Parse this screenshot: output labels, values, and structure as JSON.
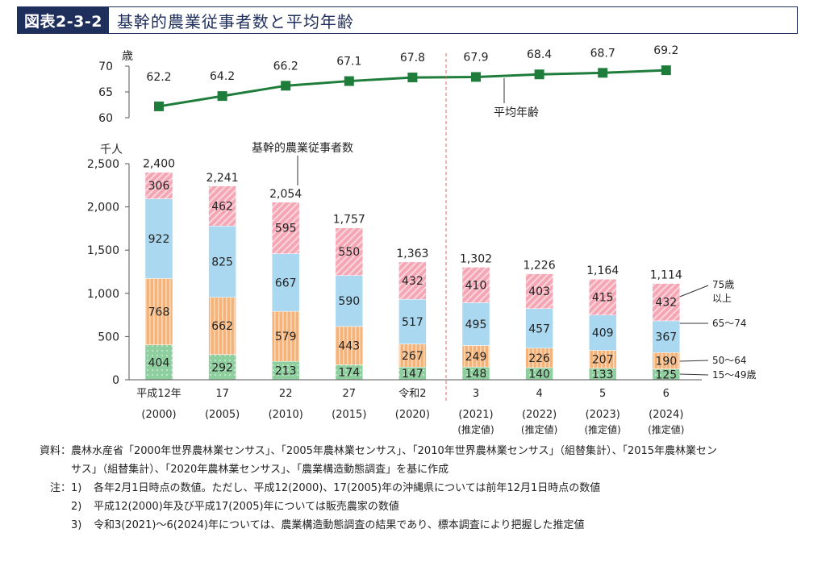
{
  "header": {
    "figure_id": "図表2-3-2",
    "title": "基幹的農業従事者数と平均年齢"
  },
  "chart_data": {
    "type": "bar",
    "stacked": true,
    "x_labels": [
      "平成12年",
      "17",
      "22",
      "27",
      "令和2",
      "3",
      "4",
      "5",
      "6"
    ],
    "x_sublabels": [
      "(2000)",
      "(2005)",
      "(2010)",
      "(2015)",
      "(2020)",
      "(2021)",
      "(2022)",
      "(2023)",
      "(2024)"
    ],
    "estimate_label": "(推定値)",
    "estimate_flags": [
      false,
      false,
      false,
      false,
      false,
      true,
      true,
      true,
      true
    ],
    "y_unit": "千人",
    "y_ticks": [
      "0",
      "500",
      "1,000",
      "1,500",
      "2,000",
      "2,500"
    ],
    "ylim": [
      0,
      2500
    ],
    "series": [
      {
        "name": "15〜49歳",
        "color": "#8fcf9f",
        "values": [
          404,
          292,
          213,
          174,
          147,
          148,
          140,
          133,
          125
        ]
      },
      {
        "name": "50〜64",
        "color": "#f5b37a",
        "values": [
          768,
          662,
          579,
          443,
          267,
          249,
          226,
          207,
          190
        ]
      },
      {
        "name": "65〜74",
        "color": "#a9d8f0",
        "values": [
          922,
          825,
          667,
          590,
          517,
          495,
          457,
          409,
          367
        ]
      },
      {
        "name": "75歳以上",
        "color": "#f4a6b4",
        "values": [
          306,
          462,
          595,
          550,
          432,
          410,
          403,
          415,
          432
        ]
      }
    ],
    "legend_labels": [
      "75歳",
      "以上",
      "65〜74",
      "50〜64",
      "15〜49歳"
    ],
    "totals": [
      "2,400",
      "2,241",
      "2,054",
      "1,757",
      "1,363",
      "1,302",
      "1,226",
      "1,164",
      "1,114"
    ],
    "total_series_label": "基幹的農業従事者数",
    "age_line": {
      "name": "平均年齢",
      "unit": "歳",
      "values": [
        62.2,
        64.2,
        66.2,
        67.1,
        67.8,
        67.9,
        68.4,
        68.7,
        69.2
      ],
      "y_ticks": [
        "60",
        "65",
        "70"
      ],
      "ylim": [
        60,
        70
      ],
      "color": "#1e7d3a"
    }
  },
  "notes": {
    "source_head": "資料：",
    "source_line1": "農林水産省「2000年世界農林業センサス」、「2005年農林業センサス」、「2010年世界農林業センサス」（組替集計）、「2015年農林業セン",
    "source_line2": "サス」（組替集計）、「2020年農林業センサス」、「農業構造動態調査」を基に作成",
    "note_head": "注：",
    "items": [
      {
        "num": "1)",
        "text": "各年2月1日時点の数値。ただし、平成12(2000)、17(2005)年の沖縄県については前年12月1日時点の数値"
      },
      {
        "num": "2)",
        "text": "平成12(2000)年及び平成17(2005)年については販売農家の数値"
      },
      {
        "num": "3)",
        "text": "令和3(2021)〜6(2024)年については、農業構造動態調査の結果であり、標本調査により把握した推定値"
      }
    ]
  }
}
